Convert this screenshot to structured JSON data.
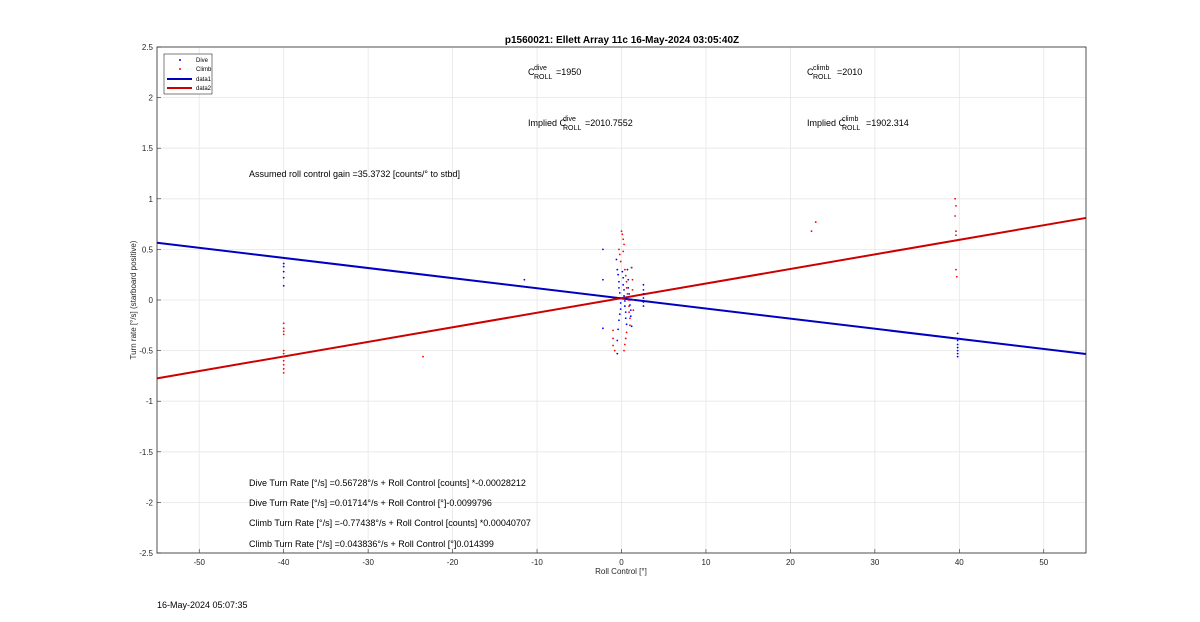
{
  "chart_data": {
    "type": "scatter",
    "title": "p1560021: Ellett Array 11c 16-May-2024 03:05:40Z",
    "xlabel": "Roll Control [°]",
    "ylabel": "Turn rate [°/s] (starboard positive)",
    "xlim": [
      -55,
      55
    ],
    "ylim": [
      -2.5,
      2.5
    ],
    "xticks": [
      -50,
      -40,
      -30,
      -20,
      -10,
      0,
      10,
      20,
      30,
      40,
      50
    ],
    "yticks": [
      -2.5,
      -2,
      -1.5,
      -1,
      -0.5,
      0,
      0.5,
      1,
      1.5,
      2,
      2.5
    ],
    "grid": true,
    "legend_position": "top-left",
    "series": [
      {
        "name": "Dive",
        "kind": "points",
        "color": "#0000ff",
        "points": [
          [
            -40,
            0.36
          ],
          [
            -40,
            0.33
          ],
          [
            -40,
            0.28
          ],
          [
            -40,
            0.22
          ],
          [
            -40,
            0.14
          ],
          [
            -11.5,
            0.2
          ],
          [
            -2.2,
            0.5
          ],
          [
            -2.2,
            0.2
          ],
          [
            -2.2,
            -0.28
          ],
          [
            -0.6,
            0.4
          ],
          [
            -0.5,
            0.3
          ],
          [
            -0.4,
            0.25
          ],
          [
            -0.3,
            0.18
          ],
          [
            -0.3,
            0.12
          ],
          [
            -0.2,
            0.07
          ],
          [
            -0.2,
            0.02
          ],
          [
            -0.1,
            -0.03
          ],
          [
            -0.1,
            -0.09
          ],
          [
            -0.2,
            -0.14
          ],
          [
            -0.3,
            -0.2
          ],
          [
            -0.4,
            -0.29
          ],
          [
            -0.5,
            -0.4
          ],
          [
            -0.5,
            -0.53
          ],
          [
            0.1,
            0.28
          ],
          [
            0.2,
            0.22
          ],
          [
            0.2,
            0.15
          ],
          [
            0.3,
            0.1
          ],
          [
            0.3,
            0.04
          ],
          [
            0.4,
            -0.01
          ],
          [
            0.4,
            -0.06
          ],
          [
            0.5,
            -0.12
          ],
          [
            0.5,
            -0.18
          ],
          [
            0.6,
            -0.24
          ],
          [
            0.7,
            0.3
          ],
          [
            0.8,
            0.2
          ],
          [
            0.8,
            0.12
          ],
          [
            0.9,
            0.06
          ],
          [
            1.0,
            0.0
          ],
          [
            1.0,
            -0.05
          ],
          [
            1.1,
            -0.1
          ],
          [
            1.1,
            -0.16
          ],
          [
            1.2,
            -0.26
          ],
          [
            1.2,
            0.32
          ],
          [
            2.6,
            0.15
          ],
          [
            2.6,
            0.1
          ],
          [
            2.6,
            0.06
          ],
          [
            2.6,
            0.02
          ],
          [
            2.6,
            -0.02
          ],
          [
            2.6,
            -0.06
          ],
          [
            39.8,
            -0.33
          ],
          [
            39.8,
            -0.4
          ],
          [
            39.8,
            -0.44
          ],
          [
            39.8,
            -0.47
          ],
          [
            39.8,
            -0.5
          ],
          [
            39.8,
            -0.53
          ],
          [
            39.8,
            -0.56
          ]
        ]
      },
      {
        "name": "Climb",
        "kind": "points",
        "color": "#ff0000",
        "points": [
          [
            -40,
            -0.23
          ],
          [
            -40,
            -0.28
          ],
          [
            -40,
            -0.31
          ],
          [
            -40,
            -0.34
          ],
          [
            -40,
            -0.5
          ],
          [
            -40,
            -0.53
          ],
          [
            -40,
            -0.56
          ],
          [
            -40,
            -0.6
          ],
          [
            -40,
            -0.64
          ],
          [
            -40,
            -0.68
          ],
          [
            -40,
            -0.72
          ],
          [
            -23.5,
            -0.56
          ],
          [
            -1.0,
            -0.3
          ],
          [
            -1.0,
            -0.38
          ],
          [
            -1.0,
            -0.45
          ],
          [
            -0.8,
            -0.5
          ],
          [
            -0.3,
            0.5
          ],
          [
            -0.2,
            0.45
          ],
          [
            -0.1,
            0.38
          ],
          [
            0.0,
            0.68
          ],
          [
            0.1,
            0.65
          ],
          [
            0.2,
            0.6
          ],
          [
            0.3,
            0.55
          ],
          [
            0.2,
            0.48
          ],
          [
            0.4,
            0.3
          ],
          [
            0.5,
            0.24
          ],
          [
            0.6,
            0.18
          ],
          [
            0.6,
            0.12
          ],
          [
            0.7,
            0.06
          ],
          [
            0.8,
            0.0
          ],
          [
            0.9,
            -0.06
          ],
          [
            0.9,
            -0.12
          ],
          [
            1.0,
            -0.18
          ],
          [
            1.0,
            -0.25
          ],
          [
            0.6,
            -0.32
          ],
          [
            0.5,
            -0.38
          ],
          [
            0.4,
            -0.44
          ],
          [
            0.3,
            -0.5
          ],
          [
            1.2,
            0.32
          ],
          [
            1.3,
            0.2
          ],
          [
            1.3,
            0.1
          ],
          [
            1.4,
            0.0
          ],
          [
            1.4,
            -0.1
          ],
          [
            22.5,
            0.68
          ],
          [
            23,
            0.77
          ],
          [
            39.5,
            1.0
          ],
          [
            39.6,
            0.93
          ],
          [
            39.5,
            0.83
          ],
          [
            39.6,
            0.68
          ],
          [
            39.6,
            0.64
          ],
          [
            39.6,
            0.3
          ],
          [
            39.7,
            0.23
          ]
        ]
      },
      {
        "name": "data1",
        "kind": "line",
        "color": "#0000c0",
        "x": [
          -55,
          55
        ],
        "y": [
          0.566,
          -0.534
        ]
      },
      {
        "name": "data2",
        "kind": "line",
        "color": "#cc0000",
        "x": [
          -55,
          55
        ],
        "y": [
          -0.774,
          0.811
        ]
      }
    ],
    "annotations": {
      "c_dive_label": "=1950",
      "c_climb_label": "=2010",
      "implied_dive": "=2010.7552",
      "implied_climb": "=1902.314",
      "implied_prefix": "Implied C",
      "c_prefix": "C",
      "sup_dive": "dive",
      "sup_climb": "climb",
      "sub_roll": "ROLL",
      "gain": "Assumed roll control gain =35.3732 [counts/° to stbd]",
      "eq1": "Dive Turn Rate [°/s] =0.56728°/s + Roll Control [counts] *-0.00028212",
      "eq2": "Dive Turn Rate [°/s] =0.01714°/s + Roll Control [°]-0.0099796",
      "eq3": "Climb Turn Rate [°/s] =-0.77438°/s + Roll Control [counts] *0.00040707",
      "eq4": "Climb Turn Rate [°/s] =0.043836°/s + Roll Control [°]0.014399"
    }
  },
  "footer_timestamp": "16-May-2024 05:07:35"
}
